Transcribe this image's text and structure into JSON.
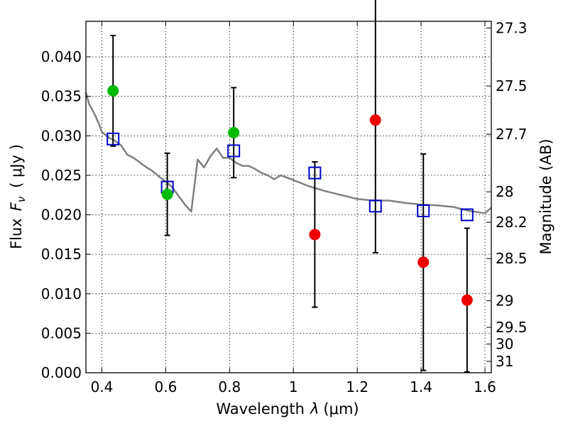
{
  "chart_data": {
    "type": "scatter",
    "xlabel_prefix": "Wavelength",
    "xlabel_symbol": "λ",
    "xlabel_unit": "(μm)",
    "ylabel_prefix": "Flux",
    "ylabel_symbol": "F",
    "ylabel_subscript": "ν",
    "ylabel_unit": "( μJy )",
    "y2label": "Magnitude (AB)",
    "xlim": [
      0.35,
      1.62
    ],
    "ylim": [
      0.0,
      0.0445
    ],
    "grid": true,
    "x_ticks": [
      0.4,
      0.6,
      0.8,
      1.0,
      1.2,
      1.4,
      1.6
    ],
    "x_tick_labels": [
      "0.4",
      "0.6",
      "0.8",
      "1",
      "1.2",
      "1.4",
      "1.6"
    ],
    "y_ticks": [
      0.0,
      0.005,
      0.01,
      0.015,
      0.02,
      0.025,
      0.03,
      0.035,
      0.04
    ],
    "y_tick_labels": [
      "0.000",
      "0.005",
      "0.010",
      "0.015",
      "0.020",
      "0.025",
      "0.030",
      "0.035",
      "0.040"
    ],
    "y2_ticks": [
      "27.3",
      "27.5",
      "27.7",
      "28",
      "28.2",
      "28.5",
      "29",
      "29.5",
      "30",
      "31"
    ],
    "colors": {
      "spectrum": "#808080",
      "model": "#0000cc",
      "detected": "#00bb00",
      "nondetected": "#ee0000",
      "errorbar": "#000000"
    },
    "series": [
      {
        "style": "gray line",
        "x": [
          0.35,
          0.36,
          0.37,
          0.38,
          0.39,
          0.4,
          0.42,
          0.44,
          0.46,
          0.48,
          0.5,
          0.52,
          0.54,
          0.56,
          0.58,
          0.6,
          0.62,
          0.64,
          0.66,
          0.68,
          0.7,
          0.71,
          0.72,
          0.74,
          0.76,
          0.78,
          0.8,
          0.82,
          0.84,
          0.86,
          0.88,
          0.9,
          0.92,
          0.94,
          0.96,
          0.98,
          1.0,
          1.05,
          1.1,
          1.15,
          1.2,
          1.25,
          1.3,
          1.35,
          1.4,
          1.45,
          1.5,
          1.55,
          1.6,
          1.62
        ],
        "y": [
          0.0355,
          0.034,
          0.0333,
          0.0325,
          0.0316,
          0.0305,
          0.0298,
          0.0294,
          0.0288,
          0.0276,
          0.0272,
          0.0266,
          0.026,
          0.0255,
          0.0248,
          0.0242,
          0.0235,
          0.0224,
          0.0213,
          0.0204,
          0.027,
          0.0265,
          0.026,
          0.0274,
          0.0284,
          0.0272,
          0.0272,
          0.0266,
          0.0262,
          0.0262,
          0.0258,
          0.0253,
          0.025,
          0.0245,
          0.025,
          0.0247,
          0.0244,
          0.0236,
          0.023,
          0.0225,
          0.022,
          0.0218,
          0.0218,
          0.0215,
          0.0213,
          0.0212,
          0.021,
          0.0205,
          0.0202,
          0.0209
        ]
      },
      {
        "style": "blue open squares",
        "x": [
          0.435,
          0.605,
          0.813,
          1.067,
          1.257,
          1.407,
          1.544
        ],
        "y": [
          0.0296,
          0.0235,
          0.0281,
          0.0253,
          0.0211,
          0.0205,
          0.02
        ]
      },
      {
        "style": "green filled circles",
        "x": [
          0.435,
          0.605,
          0.813
        ],
        "y": [
          0.0357,
          0.0226,
          0.0304
        ],
        "err": [
          0.007,
          0.0052,
          0.0057
        ]
      },
      {
        "style": "red filled circles",
        "x": [
          1.067,
          1.257,
          1.407,
          1.544
        ],
        "y": [
          0.0175,
          0.032,
          0.014,
          0.0092
        ],
        "err": [
          0.0092,
          0.0168,
          0.0137,
          0.0091
        ]
      }
    ]
  }
}
